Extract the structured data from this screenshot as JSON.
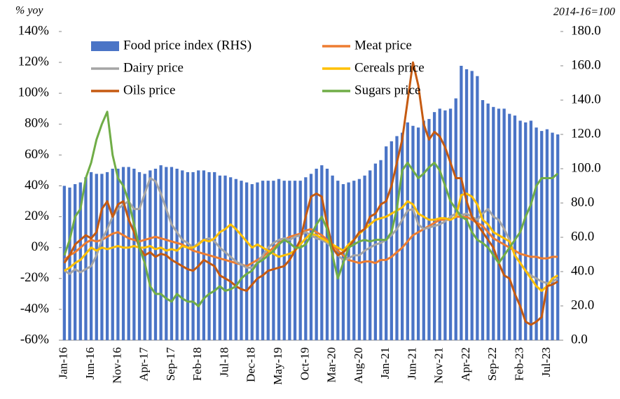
{
  "chart_data": {
    "type": "bar_line",
    "ylabel": "% yoy",
    "y2label": "2014-16=100",
    "categories": [
      "Jan-16",
      null,
      null,
      null,
      null,
      "Jun-16",
      null,
      null,
      null,
      null,
      "Nov-16",
      null,
      null,
      null,
      null,
      "Apr-17",
      null,
      null,
      null,
      null,
      "Sep-17",
      null,
      null,
      null,
      null,
      "Feb-18",
      null,
      null,
      null,
      null,
      "Jul-18",
      null,
      null,
      null,
      null,
      "Dec-18",
      null,
      null,
      null,
      null,
      "May-19",
      null,
      null,
      null,
      null,
      "Oct-19",
      null,
      null,
      null,
      null,
      "Mar-20",
      null,
      null,
      null,
      null,
      "Aug-20",
      null,
      null,
      null,
      null,
      "Jan-21",
      null,
      null,
      null,
      null,
      "Jun-21",
      null,
      null,
      null,
      null,
      "Nov-21",
      null,
      null,
      null,
      null,
      "Apr-22",
      null,
      null,
      null,
      null,
      "Sep-22",
      null,
      null,
      null,
      null,
      "Feb-23",
      null,
      null,
      null,
      null,
      "Jul-23",
      null,
      null
    ],
    "ylim": [
      -60,
      140
    ],
    "yticks": [
      {
        "value": -60,
        "label": "-60%"
      },
      {
        "value": -40,
        "label": "-40%"
      },
      {
        "value": -20,
        "label": "-20%"
      },
      {
        "value": 0,
        "label": "0%"
      },
      {
        "value": 20,
        "label": "20%"
      },
      {
        "value": 40,
        "label": "40%"
      },
      {
        "value": 60,
        "label": "60%"
      },
      {
        "value": 80,
        "label": "80%"
      },
      {
        "value": 100,
        "label": "100%"
      },
      {
        "value": 120,
        "label": "120%"
      },
      {
        "value": 140,
        "label": "140%"
      }
    ],
    "y2lim": [
      0,
      180
    ],
    "y2ticks": [
      {
        "value": 0,
        "label": "0.0"
      },
      {
        "value": 20,
        "label": "20.0"
      },
      {
        "value": 40,
        "label": "40.0"
      },
      {
        "value": 60,
        "label": "60.0"
      },
      {
        "value": 80,
        "label": "80.0"
      },
      {
        "value": 100,
        "label": "100.0"
      },
      {
        "value": 120,
        "label": "120.0"
      },
      {
        "value": 140,
        "label": "140.0"
      },
      {
        "value": 160,
        "label": "160.0"
      },
      {
        "value": 180,
        "label": "180.0"
      }
    ],
    "legend": "top",
    "series": [
      {
        "name": "Food price index (RHS)",
        "type": "bar",
        "axis": "y2",
        "color": "#4a74c6",
        "values": [
          90,
          89,
          91,
          92,
          95,
          98,
          97,
          97,
          98,
          100,
          100,
          101,
          101,
          100,
          98,
          97,
          99,
          100,
          102,
          101,
          101,
          100,
          99,
          98,
          98,
          99,
          99,
          98,
          98,
          96,
          96,
          95,
          94,
          93,
          92,
          91,
          92,
          93,
          93,
          93,
          94,
          93,
          93,
          93,
          93,
          95,
          97,
          100,
          102,
          100,
          96,
          93,
          91,
          92,
          93,
          94,
          96,
          99,
          103,
          105,
          113,
          116,
          119,
          121,
          127,
          125,
          124,
          128,
          129,
          133,
          135,
          134,
          135,
          141,
          160,
          158,
          157,
          154,
          140,
          138,
          136,
          135,
          135,
          132,
          131,
          128,
          127,
          128,
          124,
          122,
          123,
          121,
          120
        ]
      },
      {
        "name": "Meat price",
        "type": "line",
        "color": "#ed7d31",
        "values": [
          -8,
          -5,
          -3,
          0,
          3,
          5,
          4,
          5,
          7,
          9,
          10,
          8,
          6,
          5,
          4,
          5,
          6,
          7,
          6,
          5,
          4,
          3,
          2,
          0,
          -2,
          -3,
          -4,
          -5,
          -6,
          -7,
          -8,
          -9,
          -10,
          -11,
          -12,
          -10,
          -8,
          -6,
          -3,
          0,
          3,
          5,
          7,
          8,
          9,
          11,
          12,
          10,
          8,
          5,
          2,
          -2,
          -5,
          -8,
          -9,
          -10,
          -9,
          -9,
          -10,
          -8,
          -8,
          -6,
          -3,
          0,
          4,
          8,
          10,
          12,
          14,
          16,
          18,
          18,
          18,
          20,
          20,
          20,
          18,
          16,
          14,
          10,
          6,
          4,
          2,
          0,
          -2,
          -4,
          -5,
          -6,
          -6,
          -7,
          -7,
          -6,
          -6
        ]
      },
      {
        "name": "Dairy price",
        "type": "line",
        "color": "#a5a5a5",
        "values": [
          -15,
          -17,
          -14,
          -16,
          -14,
          -12,
          -5,
          5,
          12,
          20,
          25,
          28,
          30,
          25,
          25,
          35,
          45,
          43,
          35,
          25,
          15,
          10,
          5,
          3,
          0,
          3,
          5,
          6,
          4,
          0,
          -3,
          -6,
          -9,
          -11,
          -13,
          -13,
          -10,
          -5,
          0,
          3,
          5,
          6,
          5,
          7,
          8,
          10,
          8,
          6,
          5,
          3,
          0,
          -5,
          -8,
          -7,
          -5,
          -5,
          -2,
          0,
          2,
          3,
          5,
          8,
          12,
          18,
          24,
          25,
          15,
          12,
          13,
          14,
          15,
          17,
          20,
          22,
          21,
          22,
          20,
          18,
          22,
          25,
          20,
          18,
          12,
          5,
          -5,
          -10,
          -15,
          -18,
          -20,
          -22,
          -23,
          -22,
          -20
        ]
      },
      {
        "name": "Cereals price",
        "type": "line",
        "color": "#ffc000",
        "values": [
          -15,
          -13,
          -10,
          -8,
          -4,
          0,
          -2,
          0,
          -1,
          0,
          1,
          0,
          0,
          1,
          0,
          0,
          1,
          -1,
          0,
          -2,
          -1,
          -2,
          1,
          0,
          0,
          2,
          5,
          4,
          6,
          10,
          12,
          15,
          12,
          8,
          4,
          0,
          2,
          0,
          -2,
          -4,
          -6,
          -5,
          -4,
          -2,
          2,
          6,
          9,
          8,
          6,
          4,
          2,
          0,
          -2,
          2,
          5,
          9,
          12,
          15,
          18,
          19,
          20,
          22,
          24,
          26,
          30,
          28,
          22,
          20,
          18,
          18,
          19,
          19,
          18,
          20,
          34,
          35,
          33,
          28,
          18,
          15,
          10,
          8,
          6,
          4,
          -5,
          -10,
          -15,
          -20,
          -25,
          -28,
          -25,
          -20,
          -18
        ]
      },
      {
        "name": "Oils price",
        "type": "line",
        "color": "#c55a11",
        "values": [
          -10,
          -5,
          2,
          5,
          8,
          6,
          10,
          25,
          30,
          20,
          28,
          30,
          18,
          10,
          0,
          -5,
          -3,
          -6,
          -4,
          -5,
          -8,
          -10,
          -12,
          -14,
          -15,
          -12,
          -8,
          -10,
          -12,
          -18,
          -20,
          -22,
          -25,
          -27,
          -28,
          -24,
          -20,
          -18,
          -15,
          -14,
          -13,
          -12,
          -8,
          -2,
          5,
          20,
          33,
          35,
          33,
          15,
          0,
          -5,
          -3,
          0,
          5,
          10,
          12,
          20,
          22,
          28,
          30,
          40,
          55,
          70,
          95,
          120,
          105,
          80,
          70,
          75,
          72,
          65,
          55,
          45,
          45,
          30,
          20,
          15,
          10,
          5,
          0,
          -10,
          -18,
          -20,
          -30,
          -38,
          -48,
          -50,
          -48,
          -45,
          -25,
          -24,
          -22
        ]
      },
      {
        "name": "Sugars price",
        "type": "line",
        "color": "#70ad47",
        "values": [
          -5,
          5,
          20,
          25,
          45,
          55,
          70,
          80,
          88,
          60,
          45,
          40,
          30,
          15,
          0,
          -10,
          -25,
          -30,
          -30,
          -33,
          -35,
          -30,
          -33,
          -35,
          -35,
          -38,
          -33,
          -30,
          -28,
          -25,
          -28,
          -27,
          -25,
          -20,
          -17,
          -15,
          -10,
          -8,
          -5,
          -2,
          2,
          5,
          3,
          0,
          0,
          2,
          8,
          15,
          20,
          12,
          -5,
          -20,
          -10,
          0,
          2,
          4,
          5,
          4,
          5,
          5,
          5,
          10,
          25,
          50,
          55,
          50,
          45,
          48,
          52,
          55,
          50,
          40,
          30,
          25,
          20,
          18,
          10,
          5,
          3,
          0,
          -5,
          -10,
          -5,
          0,
          5,
          10,
          20,
          28,
          40,
          45,
          45,
          45,
          48
        ]
      }
    ]
  }
}
